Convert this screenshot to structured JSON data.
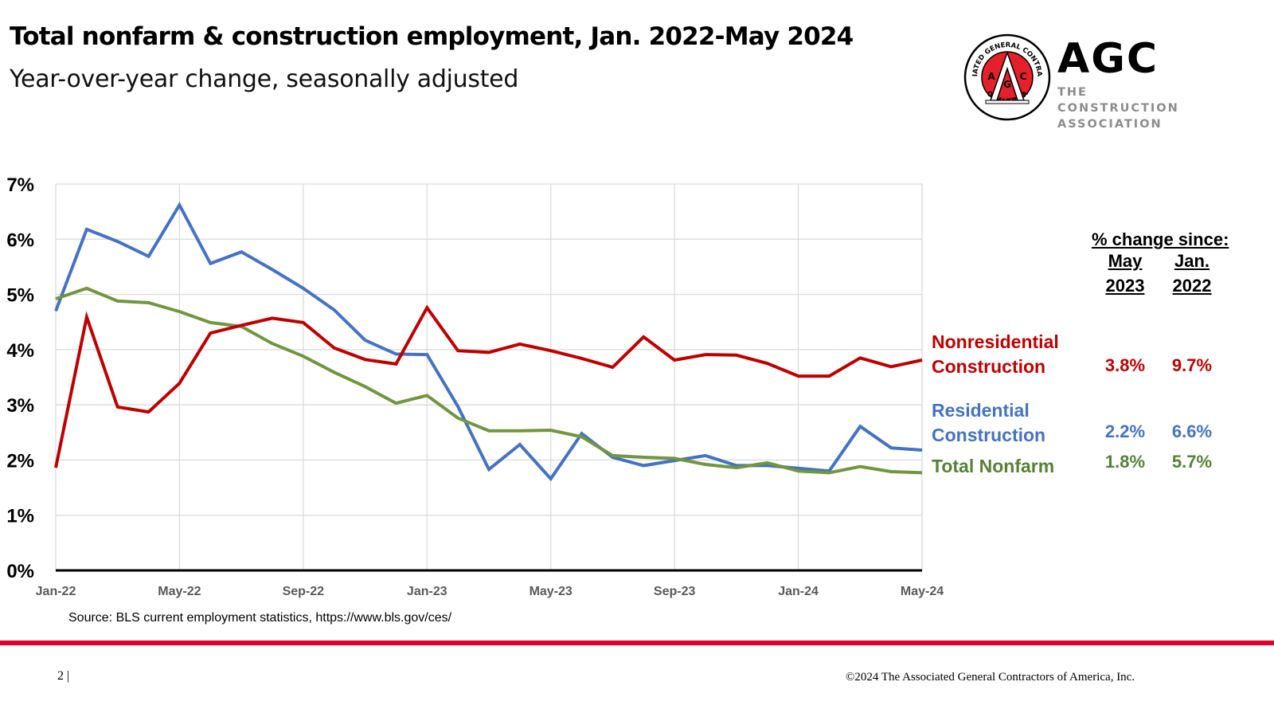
{
  "header": {
    "title": "Total nonfarm & construction employment, Jan. 2022-May 2024",
    "subtitle": "Year-over-year change, seasonally adjusted"
  },
  "logo": {
    "wordmark": "AGC",
    "tagline_1": "THE CONSTRUCTION",
    "tagline_2": "ASSOCIATION",
    "seal_top_text": "ASSOCIATED GENERAL CONTRACTORS",
    "seal_bottom_text": "OF AMERICA",
    "seal_letters": [
      "A",
      "G",
      "C"
    ],
    "colors": {
      "seal_red": "#e4202a",
      "wordmark": "#000000",
      "tagline": "#8c8c8c"
    }
  },
  "side_table": {
    "header": "% change since:",
    "columns": [
      {
        "line1": "May",
        "line2": "2023"
      },
      {
        "line1": "Jan.",
        "line2": "2022"
      }
    ],
    "rows": [
      {
        "label_line1": "Nonresidential",
        "label_line2": "Construction",
        "values": [
          "3.8%",
          "9.7%"
        ],
        "color": "#c00000"
      },
      {
        "label_line1": "Residential",
        "label_line2": "Construction",
        "values": [
          "2.2%",
          "6.6%"
        ],
        "color": "#4472c4"
      },
      {
        "label_line1": "Total Nonfarm",
        "label_line2": "",
        "values": [
          "1.8%",
          "5.7%"
        ],
        "color": "#548235"
      }
    ]
  },
  "source": "Source: BLS current employment statistics, https://www.bls.gov/ces/",
  "footer": {
    "page_number": "2 |",
    "copyright": "©2024 The Associated General Contractors of America, Inc.",
    "accent_color": "#e4002b"
  },
  "chart_data": {
    "type": "line",
    "title": "Total nonfarm & construction employment, Jan. 2022-May 2024",
    "subtitle": "Year-over-year change, seasonally adjusted",
    "xlabel": "",
    "ylabel": "",
    "ylim": [
      0,
      7
    ],
    "yticks": [
      "0%",
      "1%",
      "2%",
      "3%",
      "4%",
      "5%",
      "6%",
      "7%"
    ],
    "xtick_labels": [
      "Jan-22",
      "May-22",
      "Sep-22",
      "Jan-23",
      "May-23",
      "Sep-23",
      "Jan-24",
      "May-24"
    ],
    "xtick_every": 4,
    "grid": true,
    "legend": "right (inline labels)",
    "x": [
      "Jan-22",
      "Feb-22",
      "Mar-22",
      "Apr-22",
      "May-22",
      "Jun-22",
      "Jul-22",
      "Aug-22",
      "Sep-22",
      "Oct-22",
      "Nov-22",
      "Dec-22",
      "Jan-23",
      "Feb-23",
      "Mar-23",
      "Apr-23",
      "May-23",
      "Jun-23",
      "Jul-23",
      "Aug-23",
      "Sep-23",
      "Oct-23",
      "Nov-23",
      "Dec-23",
      "Jan-24",
      "Feb-24",
      "Mar-24",
      "Apr-24",
      "May-24"
    ],
    "series": [
      {
        "name": "Nonresidential Construction",
        "color": "#c00000",
        "values": [
          1.86,
          4.59,
          2.96,
          2.87,
          3.39,
          4.3,
          4.44,
          4.57,
          4.49,
          4.03,
          3.82,
          3.74,
          4.76,
          3.98,
          3.95,
          4.1,
          3.98,
          3.84,
          3.68,
          4.23,
          3.81,
          3.91,
          3.9,
          3.75,
          3.52,
          3.52,
          3.85,
          3.69,
          3.81
        ]
      },
      {
        "name": "Residential Construction",
        "color": "#4472c4",
        "values": [
          4.7,
          6.18,
          5.96,
          5.69,
          6.62,
          5.56,
          5.77,
          5.45,
          5.11,
          4.72,
          4.17,
          3.92,
          3.91,
          2.97,
          1.83,
          2.28,
          1.66,
          2.48,
          2.05,
          1.9,
          1.99,
          2.08,
          1.9,
          1.9,
          1.85,
          1.8,
          2.61,
          2.22,
          2.18
        ]
      },
      {
        "name": "Total Nonfarm",
        "color": "#70963e",
        "values": [
          4.92,
          5.11,
          4.88,
          4.85,
          4.69,
          4.49,
          4.42,
          4.11,
          3.88,
          3.59,
          3.33,
          3.03,
          3.17,
          2.76,
          2.53,
          2.53,
          2.54,
          2.42,
          2.08,
          2.05,
          2.03,
          1.92,
          1.86,
          1.95,
          1.8,
          1.77,
          1.88,
          1.79,
          1.77
        ]
      }
    ]
  }
}
